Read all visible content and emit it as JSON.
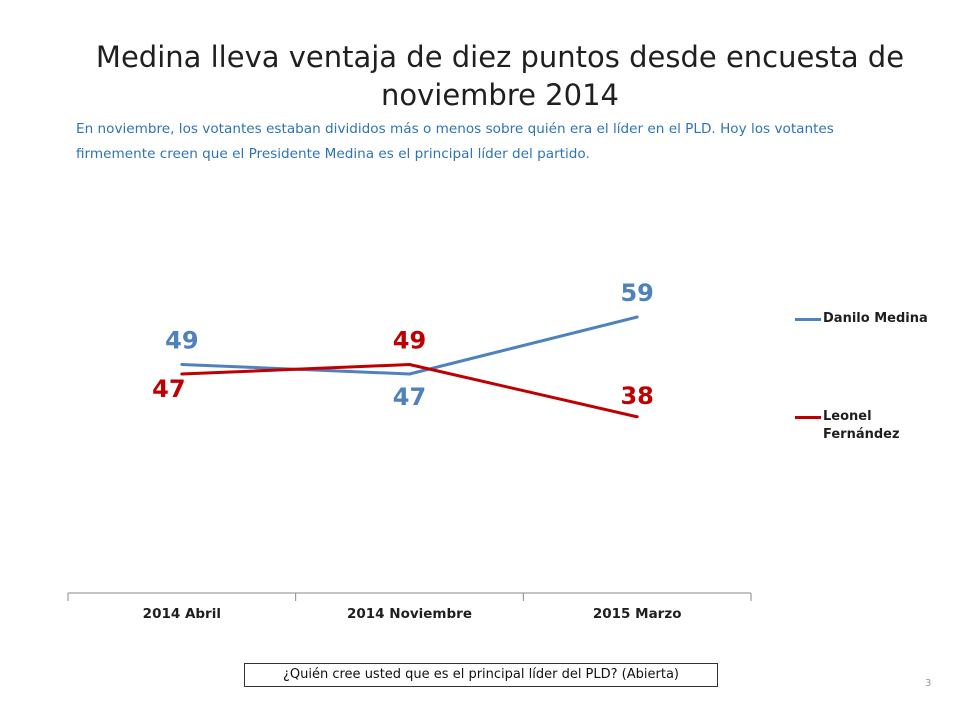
{
  "header": {
    "title": "Medina lleva ventaja de diez puntos desde encuesta de noviembre 2014",
    "subtitle": "En noviembre, los votantes estaban divididos más o menos sobre quién era el líder en el PLD. Hoy los votantes firmemente creen que el Presidente Medina es el principal líder del partido."
  },
  "footer": {
    "question": "¿Quién cree usted que es el principal líder del PLD? (Abierta)",
    "page_number": "3"
  },
  "legend": {
    "medina": "Danilo Medina",
    "fernandez": "Leonel Fernández"
  },
  "chart_data": {
    "type": "line",
    "title": "",
    "xlabel": "",
    "ylabel": "",
    "categories": [
      "2014 Abril",
      "2014 Noviembre",
      "2015 Marzo"
    ],
    "series": [
      {
        "name": "Danilo Medina",
        "values": [
          49,
          47,
          59
        ],
        "color": "#4f81bd"
      },
      {
        "name": "Leonel Fernández",
        "values": [
          47,
          49,
          38
        ],
        "color": "#c00000"
      }
    ],
    "legend_position": "right",
    "grid": false
  }
}
